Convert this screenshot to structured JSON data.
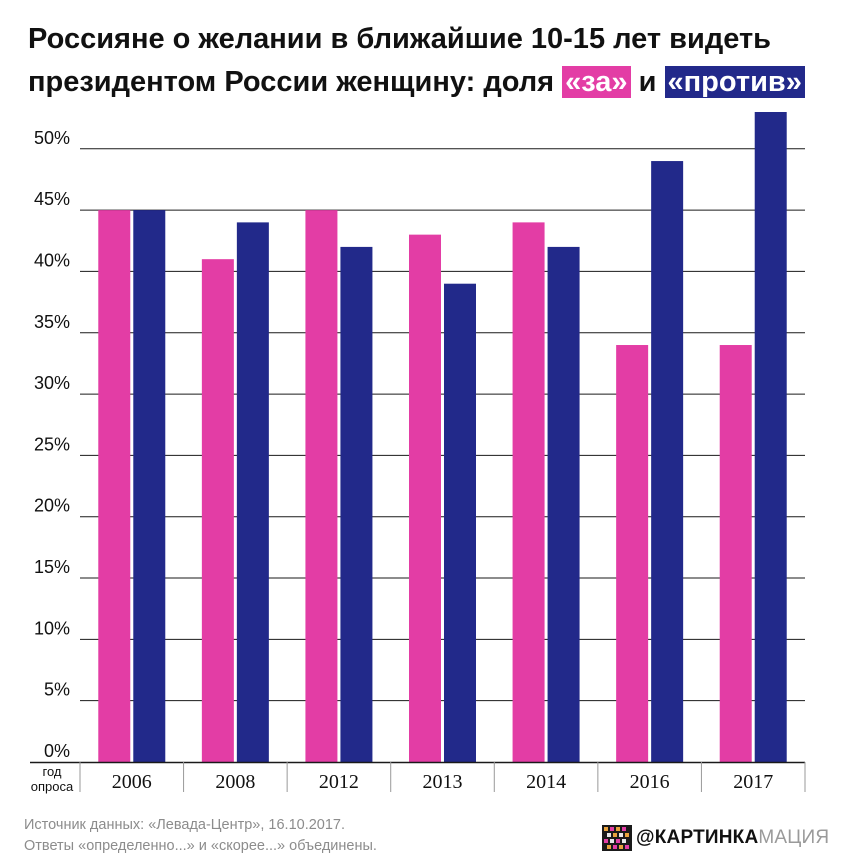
{
  "title": {
    "line1": "Россияне о желании в ближайшие 10-15 лет видеть",
    "line2_prefix": "президентом России женщину: доля ",
    "highlight_for": "«за»",
    "conj": " и ",
    "highlight_against": "«против»"
  },
  "colors": {
    "for": "#e33da5",
    "against": "#22298a",
    "grid": "#1a1a1a",
    "text": "#111111"
  },
  "chart_data": {
    "type": "bar",
    "title": "Россияне о желании в ближайшие 10-15 лет видеть президентом России женщину: доля «за» и «против»",
    "xlabel": "год опроса",
    "xlabel_lines": [
      "год",
      "опроса"
    ],
    "ylabel": "",
    "ylim": [
      0,
      53
    ],
    "yticks": [
      0,
      5,
      10,
      15,
      20,
      25,
      30,
      35,
      40,
      45,
      50
    ],
    "ytick_labels": [
      "0%",
      "5%",
      "10%",
      "15%",
      "20%",
      "25%",
      "30%",
      "35%",
      "40%",
      "45%",
      "50%"
    ],
    "grid": true,
    "legend": "none (colors explained in title highlights)",
    "categories": [
      "2006",
      "2008",
      "2012",
      "2013",
      "2014",
      "2016",
      "2017"
    ],
    "series": [
      {
        "name": "«за»",
        "color": "#e33da5",
        "values": [
          45,
          41,
          45,
          43,
          44,
          34,
          34
        ]
      },
      {
        "name": "«против»",
        "color": "#22298a",
        "values": [
          45,
          44,
          42,
          39,
          42,
          49,
          53
        ]
      }
    ]
  },
  "footer": {
    "source": "Источник данных: «Левада-Центр», 16.10.2017.",
    "note": "Ответы «определенно...» и «скорее...» объединены."
  },
  "brand": {
    "part1": "@КАРТИНКА",
    "part2": "МАЦИЯ",
    "logo_icon": "pixel-pattern-logo-icon"
  }
}
